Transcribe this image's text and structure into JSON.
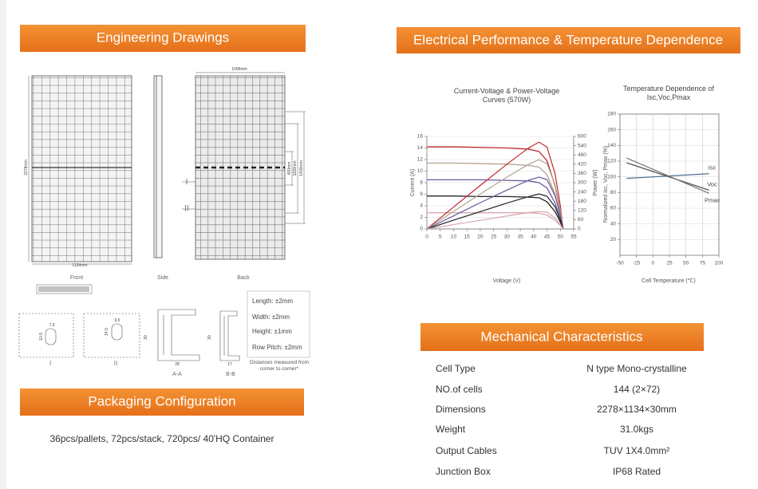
{
  "engineering": {
    "title": "Engineering Drawings",
    "front_height": "2278mm",
    "front_width": "1134mm",
    "back_width": "1096mm",
    "back_dims": [
      "400mm",
      "1100mm",
      "1400mm"
    ],
    "views": [
      "Front",
      "Side",
      "Back"
    ],
    "sections": [
      "I",
      "II"
    ],
    "detail_labels": [
      "I",
      "II",
      "A-A",
      "B-B"
    ],
    "detail_dims": [
      "7.0",
      "10.5",
      "9.5",
      "14.5",
      "28",
      "30",
      "17",
      "30"
    ],
    "tolerances": [
      "Length: ±2mm",
      "Width: ±2mm",
      "Height: ±1mm",
      "Row Pitch: ±2mm"
    ],
    "note": "Distances measured from corner to corner*"
  },
  "electrical": {
    "title": "Electrical Performance & Temperature Dependence"
  },
  "chart_data": [
    {
      "type": "line",
      "title": "Current-Voltage & Power-Voltage Curves (570W)",
      "xlabel": "Voltage (V)",
      "ylabel": "Current (A)",
      "y2label": "Power (W)",
      "x": [
        0,
        10,
        20,
        30,
        38,
        42,
        45,
        48,
        50,
        51
      ],
      "xlim": [
        0,
        55
      ],
      "xticks": [
        0,
        5,
        10,
        15,
        20,
        25,
        30,
        35,
        40,
        45,
        50,
        55
      ],
      "ylim": [
        0,
        16
      ],
      "yticks": [
        0,
        2,
        4,
        6,
        8,
        10,
        12,
        14,
        16
      ],
      "y2lim": [
        0,
        600
      ],
      "y2ticks": [
        0,
        60,
        120,
        180,
        240,
        300,
        360,
        420,
        480,
        540,
        600
      ],
      "grid": "y",
      "series": [
        {
          "color": "#c0282d",
          "values": [
            14.2,
            14.2,
            14.1,
            14.0,
            13.8,
            13.4,
            11.8,
            7.5,
            3.0,
            0
          ]
        },
        {
          "color": "#b3a393",
          "values": [
            11.4,
            11.4,
            11.3,
            11.2,
            11.0,
            10.7,
            9.4,
            6.0,
            2.4,
            0
          ]
        },
        {
          "color": "#6a5a9a",
          "values": [
            8.5,
            8.5,
            8.5,
            8.4,
            8.3,
            8.0,
            7.1,
            4.5,
            1.8,
            0
          ]
        },
        {
          "color": "#222222",
          "values": [
            5.7,
            5.7,
            5.6,
            5.6,
            5.5,
            5.4,
            4.7,
            3.0,
            1.2,
            0
          ]
        },
        {
          "color": "#d9a8b0",
          "values": [
            2.8,
            2.8,
            2.8,
            2.8,
            2.8,
            2.7,
            2.4,
            1.5,
            0.6,
            0
          ]
        },
        {
          "color": "#c0282d",
          "axis": "y2",
          "values": [
            0,
            142,
            282,
            420,
            524,
            563,
            531,
            360,
            150,
            0
          ]
        },
        {
          "color": "#b3a393",
          "axis": "y2",
          "values": [
            0,
            114,
            226,
            336,
            418,
            449,
            423,
            288,
            120,
            0
          ]
        },
        {
          "color": "#6a5a9a",
          "axis": "y2",
          "values": [
            0,
            85,
            170,
            252,
            315,
            336,
            320,
            216,
            90,
            0
          ]
        },
        {
          "color": "#222222",
          "axis": "y2",
          "values": [
            0,
            57,
            112,
            168,
            209,
            227,
            212,
            144,
            60,
            0
          ]
        },
        {
          "color": "#d9a8b0",
          "axis": "y2",
          "values": [
            0,
            28,
            56,
            84,
            106,
            113,
            108,
            72,
            30,
            0
          ]
        }
      ]
    },
    {
      "type": "line",
      "title": "Temperature Dependence of Isc,Voc,Pmax",
      "xlabel": "Cell Temperature (℃)",
      "ylabel": "Normalized Isc, Voc, Pmax (%)",
      "x": [
        -40,
        85
      ],
      "xlim": [
        -50,
        100
      ],
      "xticks": [
        -50,
        -25,
        0,
        25,
        50,
        75,
        100
      ],
      "ylim": [
        0,
        180
      ],
      "yticks": [
        20,
        40,
        60,
        80,
        100,
        120,
        140,
        160,
        180
      ],
      "grid": "both",
      "series": [
        {
          "name": "Isc",
          "color": "#4a7090",
          "values": [
            98,
            104
          ]
        },
        {
          "name": "Voc",
          "color": "#555555",
          "values": [
            118,
            83
          ]
        },
        {
          "name": "Pmax",
          "color": "#777777",
          "values": [
            124,
            79
          ]
        }
      ]
    }
  ],
  "mechanical": {
    "title": "Mechanical Characteristics",
    "rows": [
      [
        "Cell Type",
        "N type Mono-crystalline"
      ],
      [
        "NO.of cells",
        "144 (2×72)"
      ],
      [
        "Dimensions",
        "2278×1134×30mm"
      ],
      [
        "Weight",
        "31.0kgs"
      ],
      [
        "Output Cables",
        "TUV 1X4.0mm²"
      ],
      [
        "Junction Box",
        "IP68 Rated"
      ]
    ]
  },
  "packaging": {
    "title": "Packaging Configuration",
    "text": "36pcs/pallets, 72pcs/stack, 720pcs/ 40'HQ Container"
  }
}
